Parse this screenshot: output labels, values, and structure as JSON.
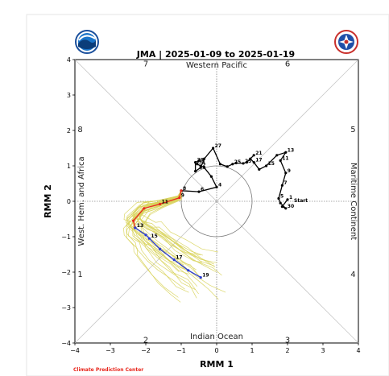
{
  "chart_data": {
    "type": "line",
    "title": "JMA | 2025-01-09 to 2025-01-19",
    "xlabel": "RMM 1",
    "ylabel": "RMM 2",
    "xlim": [
      -4,
      4
    ],
    "ylim": [
      -4,
      4
    ],
    "xticks": [
      "−4",
      "−3",
      "−2",
      "−1",
      "0",
      "1",
      "2",
      "3",
      "4"
    ],
    "yticks": [
      "−4",
      "−3",
      "−2",
      "−1",
      "0",
      "1",
      "2",
      "3",
      "4"
    ],
    "regions": {
      "top": "Western Pacific",
      "bottom": "Indian Ocean",
      "left": "West. Hem. and Africa",
      "right": "Maritime Continent"
    },
    "phases": [
      {
        "label": "7",
        "x": -2,
        "y": 3.9
      },
      {
        "label": "6",
        "x": 2,
        "y": 3.9
      },
      {
        "label": "8",
        "x": -3.85,
        "y": 2.05
      },
      {
        "label": "5",
        "x": 3.85,
        "y": 2.05
      },
      {
        "label": "1",
        "x": -3.85,
        "y": -2.05
      },
      {
        "label": "4",
        "x": 3.85,
        "y": -2.05
      },
      {
        "label": "2",
        "x": -2,
        "y": -3.9
      },
      {
        "label": "3",
        "x": 2,
        "y": -3.9
      }
    ],
    "observed": {
      "color": "#000000",
      "points": [
        {
          "x": 2.0,
          "y": 0.05,
          "label": "1"
        },
        {
          "x": 1.85,
          "y": -0.15
        },
        {
          "x": 1.95,
          "y": -0.2,
          "label": "30"
        },
        {
          "x": 1.8,
          "y": -0.05
        },
        {
          "x": 1.75,
          "y": 0.08,
          "label": "5"
        },
        {
          "x": 1.85,
          "y": 0.45,
          "label": "7"
        },
        {
          "x": 1.95,
          "y": 0.8,
          "label": "9"
        },
        {
          "x": 1.8,
          "y": 1.15,
          "label": "11"
        },
        {
          "x": 1.95,
          "y": 1.38,
          "label": "13"
        },
        {
          "x": 1.7,
          "y": 1.3
        },
        {
          "x": 1.4,
          "y": 1.0,
          "label": "15"
        },
        {
          "x": 1.2,
          "y": 0.9
        },
        {
          "x": 1.05,
          "y": 1.1,
          "label": "17"
        },
        {
          "x": 0.95,
          "y": 1.2
        },
        {
          "x": 1.05,
          "y": 1.3,
          "label": "21"
        },
        {
          "x": 0.85,
          "y": 1.1
        },
        {
          "x": 0.75,
          "y": 1.07,
          "label": "23"
        },
        {
          "x": 0.55,
          "y": 1.08
        },
        {
          "x": 0.45,
          "y": 1.05,
          "label": "25"
        },
        {
          "x": 0.3,
          "y": 0.98
        },
        {
          "x": 0.1,
          "y": 1.05
        },
        {
          "x": -0.1,
          "y": 1.5,
          "label": "27"
        },
        {
          "x": -0.35,
          "y": 1.2
        },
        {
          "x": -0.45,
          "y": 0.95,
          "label": "2"
        },
        {
          "x": -0.6,
          "y": 0.85
        },
        {
          "x": -0.6,
          "y": 1.1,
          "label": "29"
        },
        {
          "x": -0.5,
          "y": 1.15
        },
        {
          "x": -0.55,
          "y": 1.05,
          "label": "31"
        },
        {
          "x": -0.45,
          "y": 1.0
        },
        {
          "x": -0.35,
          "y": 0.95
        },
        {
          "x": -0.15,
          "y": 0.7
        },
        {
          "x": 0.0,
          "y": 0.4,
          "label": "4"
        },
        {
          "x": -0.5,
          "y": 0.27,
          "label": "6"
        },
        {
          "x": -1.0,
          "y": 0.3,
          "label": "8"
        }
      ]
    },
    "forecast_mean": [
      {
        "name": "",
        "color": "#e8271d",
        "points": [
          {
            "x": -1.0,
            "y": 0.3
          },
          {
            "x": -1.05,
            "y": 0.1,
            "label": "9"
          },
          {
            "x": -1.6,
            "y": -0.08,
            "label": "11"
          },
          {
            "x": -2.05,
            "y": -0.2
          },
          {
            "x": -2.35,
            "y": -0.55
          },
          {
            "x": -2.3,
            "y": -0.75,
            "label": "13"
          }
        ]
      },
      {
        "name": "",
        "color": "#2a3bd6",
        "points": [
          {
            "x": -2.3,
            "y": -0.75
          },
          {
            "x": -2.0,
            "y": -0.95
          },
          {
            "x": -1.9,
            "y": -1.05,
            "label": "15"
          },
          {
            "x": -1.6,
            "y": -1.35
          },
          {
            "x": -1.2,
            "y": -1.65,
            "label": "17"
          },
          {
            "x": -0.8,
            "y": -1.95
          },
          {
            "x": -0.45,
            "y": -2.15,
            "label": "19"
          }
        ]
      }
    ],
    "ensemble_color": "#d8d35a",
    "inner_circle_radius": 1,
    "credit": "Climate Prediction Center"
  }
}
